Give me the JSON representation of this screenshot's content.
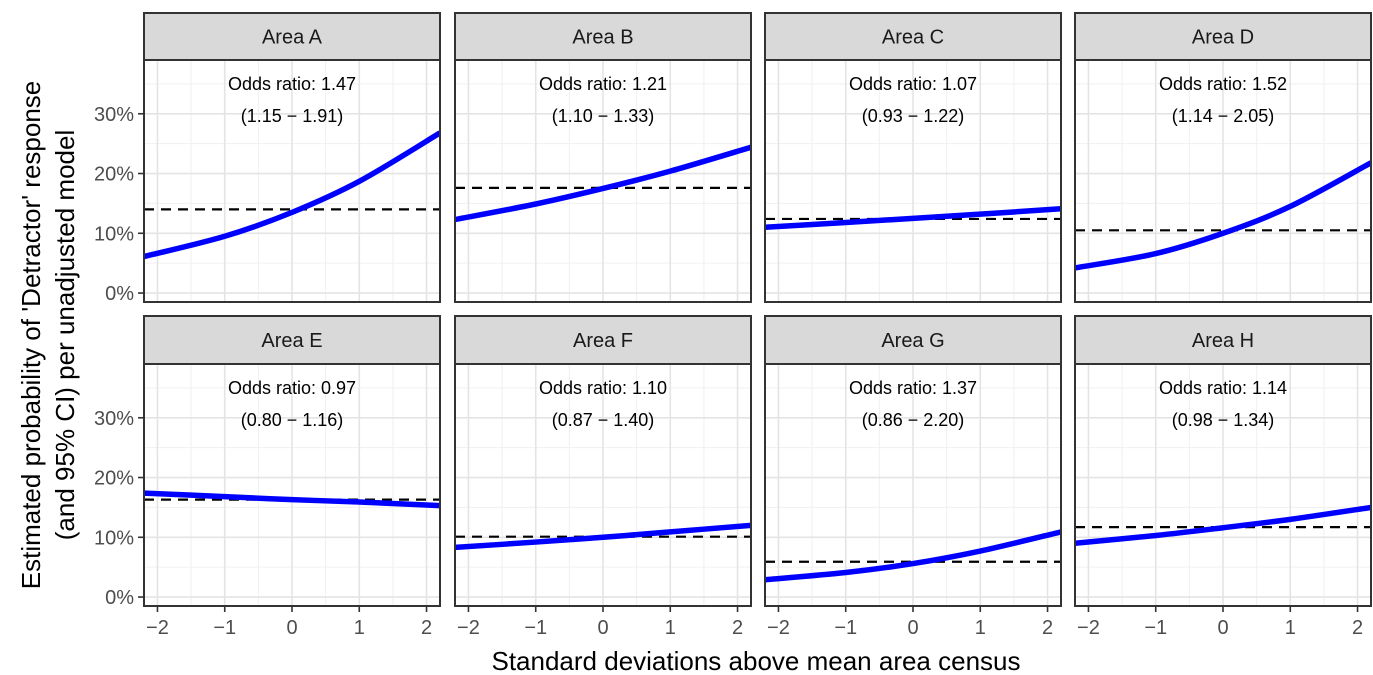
{
  "chart_data": {
    "type": "line",
    "xlabel": "Standard deviations above mean area census",
    "ylabel_line1": "Estimated probability of 'Detractor' response",
    "ylabel_line2": "(and 95% CI) per unadjusted model",
    "xlim": [
      -2.2,
      2.2
    ],
    "ylim": [
      -1.5,
      39
    ],
    "x_ticks": [
      -2,
      -1,
      0,
      1,
      2
    ],
    "x_tick_labels": [
      "−2",
      "−1",
      "0",
      "1",
      "2"
    ],
    "y_ticks": [
      0,
      10,
      20,
      30
    ],
    "y_tick_labels": [
      "0%",
      "10%",
      "20%",
      "30%"
    ],
    "grid": true,
    "series_color": "#0000ff",
    "reference_line_color": "#000000",
    "strip_color": "#d9d9d9",
    "panels": [
      {
        "name": "Area A",
        "odds_ratio_label": "Odds ratio: 1.47",
        "ci_label": "(1.15 − 1.91)",
        "x": [
          -2.2,
          -1,
          0,
          1,
          2.2
        ],
        "y": [
          6.1,
          9.5,
          13.5,
          18.7,
          26.8
        ],
        "reference_y": 14.0
      },
      {
        "name": "Area B",
        "odds_ratio_label": "Odds ratio: 1.21",
        "ci_label": "(1.10 − 1.33)",
        "x": [
          -2.2,
          -1,
          0,
          1,
          2.2
        ],
        "y": [
          12.3,
          14.9,
          17.5,
          20.4,
          24.4
        ],
        "reference_y": 17.6
      },
      {
        "name": "Area C",
        "odds_ratio_label": "Odds ratio: 1.07",
        "ci_label": "(0.93 − 1.22)",
        "x": [
          -2.2,
          -1,
          0,
          1,
          2.2
        ],
        "y": [
          11.0,
          11.8,
          12.5,
          13.2,
          14.1
        ],
        "reference_y": 12.4
      },
      {
        "name": "Area D",
        "odds_ratio_label": "Odds ratio: 1.52",
        "ci_label": "(1.14 − 2.05)",
        "x": [
          -2.2,
          -1,
          0,
          1,
          2.2
        ],
        "y": [
          4.2,
          6.6,
          10.0,
          14.5,
          21.8
        ],
        "reference_y": 10.5
      },
      {
        "name": "Area E",
        "odds_ratio_label": "Odds ratio: 0.97",
        "ci_label": "(0.80 − 1.16)",
        "x": [
          -2.2,
          -1,
          0,
          1,
          2.2
        ],
        "y": [
          17.4,
          16.8,
          16.3,
          15.9,
          15.3
        ],
        "reference_y": 16.3
      },
      {
        "name": "Area F",
        "odds_ratio_label": "Odds ratio: 1.10",
        "ci_label": "(0.87 − 1.40)",
        "x": [
          -2.2,
          -1,
          0,
          1,
          2.2
        ],
        "y": [
          8.3,
          9.2,
          10.0,
          10.9,
          12.0
        ],
        "reference_y": 10.1
      },
      {
        "name": "Area G",
        "odds_ratio_label": "Odds ratio: 1.37",
        "ci_label": "(0.86 − 2.20)",
        "x": [
          -2.2,
          -1,
          0,
          1,
          2.2
        ],
        "y": [
          2.9,
          4.1,
          5.6,
          7.7,
          10.9
        ],
        "reference_y": 5.9
      },
      {
        "name": "Area H",
        "odds_ratio_label": "Odds ratio: 1.14",
        "ci_label": "(0.98 − 1.34)",
        "x": [
          -2.2,
          -1,
          0,
          1,
          2.2
        ],
        "y": [
          9.0,
          10.3,
          11.6,
          13.0,
          15.0
        ],
        "reference_y": 11.7
      }
    ]
  }
}
